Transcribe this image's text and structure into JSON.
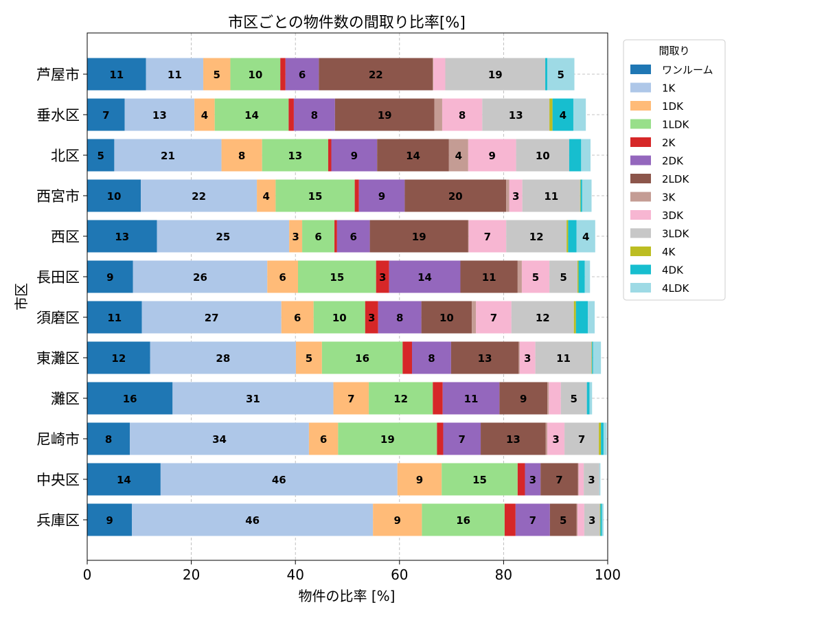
{
  "chart_data": {
    "type": "bar",
    "orientation": "horizontal",
    "stacked": true,
    "title": "市区ごとの物件数の間取り比率[%]",
    "xlabel": "物件の比率 [%]",
    "ylabel": "市区",
    "xlim": [
      0,
      100
    ],
    "xticks": [
      "0",
      "20",
      "40",
      "60",
      "80",
      "100"
    ],
    "grid": true,
    "legend_title": "間取り",
    "legend_position": "upper-right-outside",
    "categories": [
      "芦屋市",
      "垂水区",
      "北区",
      "西宮市",
      "西区",
      "長田区",
      "須磨区",
      "東灘区",
      "灘区",
      "尼崎市",
      "中央区",
      "兵庫区"
    ],
    "series": [
      {
        "name": "ワンルーム",
        "color": "#1f77b4",
        "values": [
          11.3,
          7.2,
          5.2,
          10.3,
          13.4,
          8.8,
          10.5,
          12.1,
          16.4,
          8.2,
          14.1,
          8.6
        ]
      },
      {
        "name": "1K",
        "color": "#aec7e8",
        "values": [
          11.0,
          13.4,
          20.6,
          22.3,
          25.4,
          25.8,
          26.8,
          28.0,
          30.9,
          34.4,
          45.5,
          46.3
        ]
      },
      {
        "name": "1DK",
        "color": "#ffbb78",
        "values": [
          5.2,
          3.9,
          7.8,
          3.6,
          2.5,
          5.9,
          6.2,
          5.0,
          6.8,
          5.6,
          8.5,
          9.4
        ]
      },
      {
        "name": "1LDK",
        "color": "#98df8a",
        "values": [
          9.6,
          14.2,
          12.7,
          15.2,
          6.2,
          15.0,
          9.9,
          15.5,
          12.3,
          19.0,
          14.6,
          15.9
        ]
      },
      {
        "name": "2K",
        "color": "#d62728",
        "values": [
          1.0,
          1.0,
          0.6,
          0.8,
          0.5,
          2.5,
          2.5,
          1.8,
          1.9,
          1.2,
          1.4,
          2.1
        ]
      },
      {
        "name": "2DK",
        "color": "#9467bd",
        "values": [
          6.4,
          7.9,
          8.8,
          8.8,
          6.3,
          13.7,
          8.3,
          7.5,
          10.9,
          7.2,
          3.0,
          6.6
        ]
      },
      {
        "name": "2LDK",
        "color": "#8c564b",
        "values": [
          21.9,
          19.1,
          13.8,
          19.5,
          18.9,
          11.0,
          9.7,
          13.0,
          9.2,
          12.5,
          7.2,
          5.1
        ]
      },
      {
        "name": "3K",
        "color": "#c49c94",
        "values": [
          0.1,
          1.5,
          3.7,
          0.6,
          0.1,
          0.8,
          0.8,
          0.2,
          0.3,
          0.3,
          0.1,
          0.2
        ]
      },
      {
        "name": "3DK",
        "color": "#f7b6d2",
        "values": [
          2.3,
          7.7,
          9.2,
          2.5,
          7.2,
          5.3,
          6.8,
          3.0,
          2.3,
          3.3,
          1.0,
          1.3
        ]
      },
      {
        "name": "3LDK",
        "color": "#c7c7c7",
        "values": [
          19.2,
          12.9,
          10.2,
          11.1,
          11.6,
          5.4,
          12.0,
          10.8,
          5.0,
          6.6,
          3.0,
          3.0
        ]
      },
      {
        "name": "4K",
        "color": "#bcbd22",
        "values": [
          0.0,
          0.6,
          0.0,
          0.1,
          0.3,
          0.2,
          0.4,
          0.1,
          0.0,
          0.4,
          0.0,
          0.1
        ]
      },
      {
        "name": "4DK",
        "color": "#17becf",
        "values": [
          0.4,
          4.0,
          2.3,
          0.3,
          1.6,
          1.2,
          2.3,
          0.2,
          0.5,
          0.5,
          0.0,
          0.3
        ]
      },
      {
        "name": "4LDK",
        "color": "#9edae5",
        "values": [
          5.2,
          2.4,
          1.8,
          1.8,
          3.6,
          1.0,
          1.3,
          1.5,
          0.5,
          0.6,
          0.2,
          0.3
        ]
      }
    ]
  }
}
